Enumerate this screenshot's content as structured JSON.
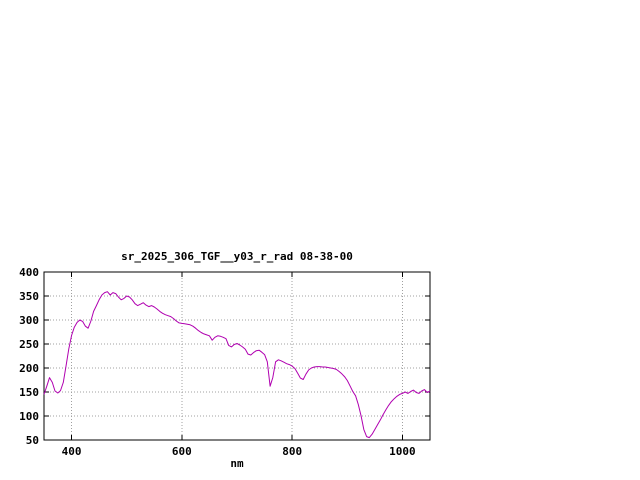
{
  "page": {
    "background": "#ffffff"
  },
  "chart_data": {
    "type": "line",
    "title": "sr_2025_306_TGF__y03_r_rad 08-38-00",
    "xlabel": "nm",
    "ylabel": "",
    "xlim": [
      350,
      1050
    ],
    "ylim": [
      50,
      400
    ],
    "xticks": [
      400,
      600,
      800,
      1000
    ],
    "yticks": [
      50,
      100,
      150,
      200,
      250,
      300,
      350,
      400
    ],
    "grid": true,
    "legend": "none",
    "line_color": "#b000b0",
    "grid_color": "#a0a0a0",
    "axis_color": "#000000",
    "series": [
      {
        "name": "sr_2025_306_TGF__y03_r_rad",
        "x": [
          350,
          355,
          360,
          365,
          370,
          375,
          380,
          385,
          390,
          395,
          400,
          405,
          410,
          415,
          420,
          425,
          430,
          435,
          440,
          445,
          450,
          455,
          460,
          465,
          470,
          475,
          480,
          485,
          490,
          495,
          500,
          505,
          510,
          515,
          520,
          525,
          530,
          535,
          540,
          545,
          550,
          555,
          560,
          565,
          570,
          575,
          580,
          585,
          590,
          595,
          600,
          605,
          610,
          615,
          620,
          625,
          630,
          635,
          640,
          645,
          650,
          655,
          660,
          665,
          670,
          675,
          680,
          685,
          690,
          695,
          700,
          705,
          710,
          715,
          720,
          725,
          730,
          735,
          740,
          745,
          750,
          755,
          760,
          765,
          770,
          775,
          780,
          785,
          790,
          795,
          800,
          805,
          810,
          815,
          820,
          825,
          830,
          835,
          840,
          845,
          850,
          855,
          860,
          865,
          870,
          875,
          880,
          885,
          890,
          895,
          900,
          905,
          910,
          915,
          920,
          925,
          930,
          935,
          940,
          945,
          950,
          955,
          960,
          965,
          970,
          975,
          980,
          985,
          990,
          995,
          1000,
          1005,
          1010,
          1015,
          1020,
          1025,
          1030,
          1035,
          1040,
          1045,
          1050
        ],
        "values": [
          145,
          162,
          180,
          170,
          152,
          148,
          153,
          170,
          205,
          240,
          268,
          285,
          295,
          300,
          297,
          287,
          283,
          298,
          318,
          330,
          342,
          352,
          357,
          359,
          352,
          357,
          355,
          348,
          342,
          345,
          350,
          348,
          342,
          334,
          330,
          333,
          336,
          331,
          328,
          330,
          327,
          323,
          318,
          314,
          311,
          309,
          307,
          303,
          298,
          294,
          293,
          292,
          291,
          290,
          287,
          283,
          278,
          274,
          271,
          269,
          267,
          258,
          264,
          267,
          266,
          264,
          261,
          247,
          244,
          249,
          251,
          248,
          244,
          239,
          229,
          227,
          232,
          236,
          237,
          233,
          228,
          213,
          162,
          180,
          213,
          217,
          215,
          212,
          209,
          207,
          204,
          199,
          189,
          179,
          176,
          187,
          196,
          200,
          202,
          203,
          203,
          202,
          202,
          201,
          200,
          199,
          197,
          193,
          188,
          182,
          174,
          163,
          151,
          142,
          124,
          100,
          72,
          57,
          55,
          62,
          72,
          82,
          92,
          103,
          113,
          122,
          130,
          136,
          141,
          145,
          147,
          150,
          147,
          151,
          154,
          149,
          147,
          152,
          155,
          149,
          152
        ]
      }
    ]
  }
}
